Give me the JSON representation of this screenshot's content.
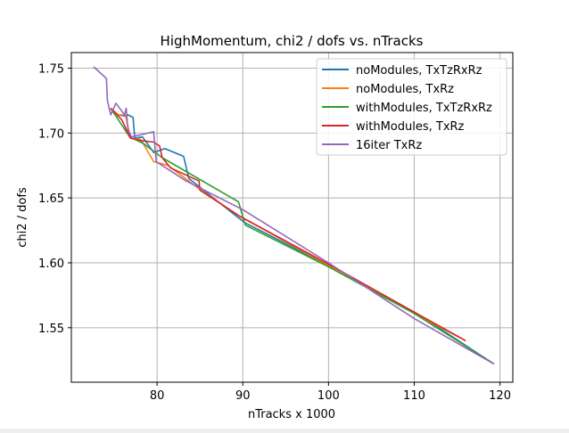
{
  "chart_data": {
    "type": "line",
    "title": "HighMomentum, chi2 / dofs vs. nTracks",
    "xlabel": "nTracks x 1000",
    "ylabel": "chi2 / dofs",
    "xlim": [
      70,
      121.5
    ],
    "ylim": [
      1.508,
      1.762
    ],
    "xticks": [
      80,
      90,
      100,
      110,
      120
    ],
    "yticks": [
      1.55,
      1.6,
      1.65,
      1.7,
      1.75
    ],
    "xtick_labels": [
      "80",
      "90",
      "100",
      "110",
      "120"
    ],
    "ytick_labels": [
      "1.55",
      "1.60",
      "1.65",
      "1.70",
      "1.75"
    ],
    "grid": true,
    "legend_position": "top-right",
    "series": [
      {
        "name": "noModules, TxTzRxRz",
        "color": "#1f77b4",
        "x": [
          74.6,
          75.4,
          76.4,
          76.6,
          77.2,
          77.4,
          78.3,
          79.6,
          80.9,
          83.1,
          83.7,
          90.2,
          100,
          111,
          119.3
        ],
        "y": [
          1.719,
          1.714,
          1.713,
          1.714,
          1.712,
          1.696,
          1.697,
          1.685,
          1.688,
          1.682,
          1.665,
          1.631,
          1.598,
          1.558,
          1.522
        ]
      },
      {
        "name": "noModules, TxRz",
        "color": "#ff7f0e",
        "x": [
          74.6,
          75.5,
          76.3,
          76.9,
          78.1,
          79.6,
          81.3,
          84.9,
          89.6,
          100,
          110,
          116
        ],
        "y": [
          1.719,
          1.714,
          1.714,
          1.696,
          1.695,
          1.678,
          1.675,
          1.657,
          1.636,
          1.598,
          1.561,
          1.54
        ]
      },
      {
        "name": "withModules, TxTzRxRz",
        "color": "#2ca02c",
        "x": [
          74.6,
          76.8,
          78.4,
          80.6,
          89.5,
          90.3,
          100,
          110,
          119.3
        ],
        "y": [
          1.719,
          1.697,
          1.692,
          1.681,
          1.647,
          1.629,
          1.597,
          1.561,
          1.522
        ]
      },
      {
        "name": "withModules, TxRz",
        "color": "#d62728",
        "x": [
          74.6,
          75.9,
          76.9,
          78.3,
          79.6,
          80.3,
          80.6,
          81.6,
          84.9,
          85.0,
          89.6,
          100,
          110,
          116
        ],
        "y": [
          1.719,
          1.71,
          1.696,
          1.694,
          1.693,
          1.69,
          1.681,
          1.673,
          1.663,
          1.656,
          1.636,
          1.599,
          1.562,
          1.54
        ]
      },
      {
        "name": "16iter TxRz",
        "color": "#9467bd",
        "x": [
          72.6,
          74.1,
          74.2,
          74.6,
          75.2,
          76.2,
          76.4,
          76.6,
          77.0,
          79.6,
          79.9,
          83.4,
          90.0,
          100,
          110,
          119.3
        ],
        "y": [
          1.751,
          1.742,
          1.725,
          1.714,
          1.723,
          1.714,
          1.719,
          1.703,
          1.697,
          1.701,
          1.678,
          1.663,
          1.641,
          1.6,
          1.557,
          1.522
        ]
      }
    ]
  }
}
